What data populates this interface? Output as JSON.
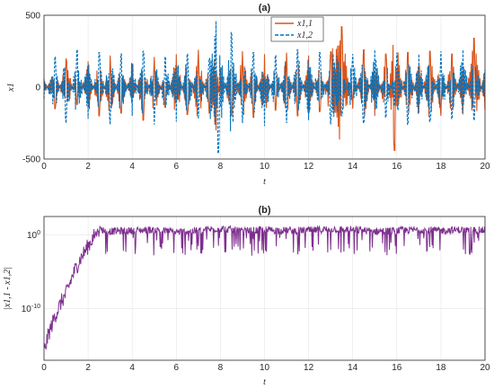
{
  "chart_data": [
    {
      "type": "line",
      "title": "(a)",
      "xlabel": "t",
      "ylabel": "x1",
      "xlim": [
        0,
        20
      ],
      "ylim": [
        -500,
        500
      ],
      "xticks": [
        "0",
        "2",
        "4",
        "6",
        "8",
        "10",
        "12",
        "14",
        "16",
        "18",
        "20"
      ],
      "yticks": [
        "-500",
        "0",
        "500"
      ],
      "grid": true,
      "legend_position": "top-right",
      "series": [
        {
          "name": "x1,1",
          "color": "#D95319",
          "style": "solid",
          "x": [
            0,
            0.5,
            1,
            1.5,
            2,
            2.5,
            3,
            3.5,
            4,
            4.5,
            5,
            5.5,
            6,
            6.5,
            7,
            7.5,
            7.8,
            8,
            8.5,
            9,
            9.5,
            10,
            10.5,
            11,
            11.5,
            12,
            12.5,
            13,
            13.5,
            14,
            14.5,
            15,
            15.5,
            15.9,
            16.5,
            17,
            17.5,
            18,
            18.5,
            19,
            19.5,
            20
          ],
          "y": [
            60,
            -150,
            200,
            -120,
            180,
            -200,
            220,
            -180,
            160,
            -230,
            210,
            -140,
            230,
            -190,
            260,
            -180,
            -300,
            130,
            -200,
            250,
            -210,
            230,
            -160,
            240,
            -200,
            220,
            -170,
            250,
            420,
            -150,
            260,
            -200,
            230,
            -440,
            240,
            -180,
            250,
            -200,
            230,
            -190,
            340,
            -160
          ]
        },
        {
          "name": "x1,2",
          "color": "#0072BD",
          "style": "dashed",
          "x": [
            0,
            0.5,
            1,
            1.5,
            2,
            2.5,
            3,
            3.5,
            4,
            4.5,
            5,
            5.5,
            6,
            6.5,
            7,
            7.5,
            7.8,
            7.9,
            8.5,
            9,
            9.5,
            10,
            10.5,
            11,
            11.5,
            12,
            12.5,
            13,
            13.5,
            14,
            14.5,
            15,
            15.5,
            16,
            16.5,
            17,
            17.5,
            18,
            18.5,
            19,
            19.5,
            20
          ],
          "y": [
            -80,
            210,
            -250,
            260,
            -220,
            240,
            -260,
            230,
            -200,
            250,
            -260,
            210,
            -240,
            230,
            -220,
            200,
            460,
            -460,
            380,
            -250,
            240,
            -270,
            220,
            -250,
            260,
            -230,
            240,
            -260,
            -200,
            230,
            -250,
            260,
            -210,
            240,
            -260,
            230,
            -240,
            250,
            -220,
            260,
            -230,
            120
          ]
        }
      ]
    },
    {
      "type": "line",
      "title": "(b)",
      "xlabel": "t",
      "ylabel": "|x1,1 - x1,2|",
      "xlim": [
        0,
        20
      ],
      "ylim_exponent": [
        -17,
        2.5
      ],
      "log_scale_y": true,
      "xticks": [
        "0",
        "2",
        "4",
        "6",
        "8",
        "10",
        "12",
        "14",
        "16",
        "18",
        "20"
      ],
      "yticks": [
        "10^0",
        "10^-10"
      ],
      "grid": true,
      "series": [
        {
          "name": "",
          "color": "#7E2F8E",
          "style": "solid",
          "x": [
            0,
            0.2,
            0.5,
            0.8,
            1.0,
            1.3,
            1.6,
            1.9,
            2.2,
            2.5,
            3,
            4,
            5,
            6,
            7,
            8,
            9,
            10,
            11,
            12,
            13,
            14,
            15,
            16,
            17,
            18,
            19,
            20
          ],
          "y_exponent": [
            -16,
            -13.5,
            -11,
            -9,
            -8,
            -5.5,
            -3.5,
            -2,
            -0.5,
            0.8,
            0.5,
            0.6,
            0.7,
            0.4,
            0.6,
            0.9,
            0.5,
            0.7,
            0.6,
            0.6,
            0.8,
            0.7,
            0.5,
            0.6,
            0.7,
            0.6,
            0.7,
            0.6
          ]
        }
      ]
    }
  ]
}
